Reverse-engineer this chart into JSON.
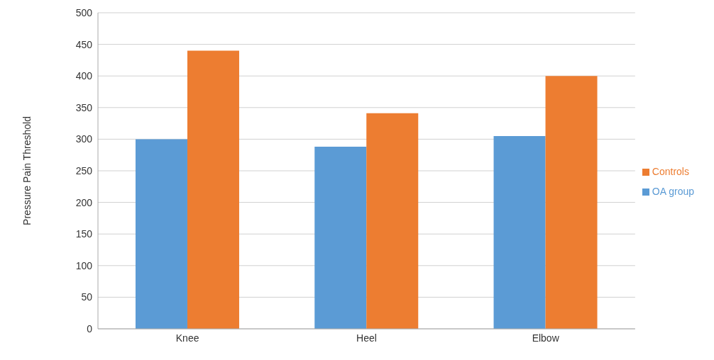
{
  "chart_data": {
    "type": "bar",
    "ylabel": "Pressure Pain Threshold",
    "categories": [
      "Knee",
      "Heel",
      "Elbow"
    ],
    "series": [
      {
        "name": "OA group",
        "color": "#5b9bd5",
        "values": [
          300,
          288,
          305
        ]
      },
      {
        "name": "Controls",
        "color": "#ed7d31",
        "values": [
          440,
          341,
          400
        ]
      }
    ],
    "ylim": [
      0,
      500
    ],
    "yticks": [
      0,
      50,
      100,
      150,
      200,
      250,
      300,
      350,
      400,
      450,
      500
    ],
    "grid": "y",
    "legend": "right"
  }
}
